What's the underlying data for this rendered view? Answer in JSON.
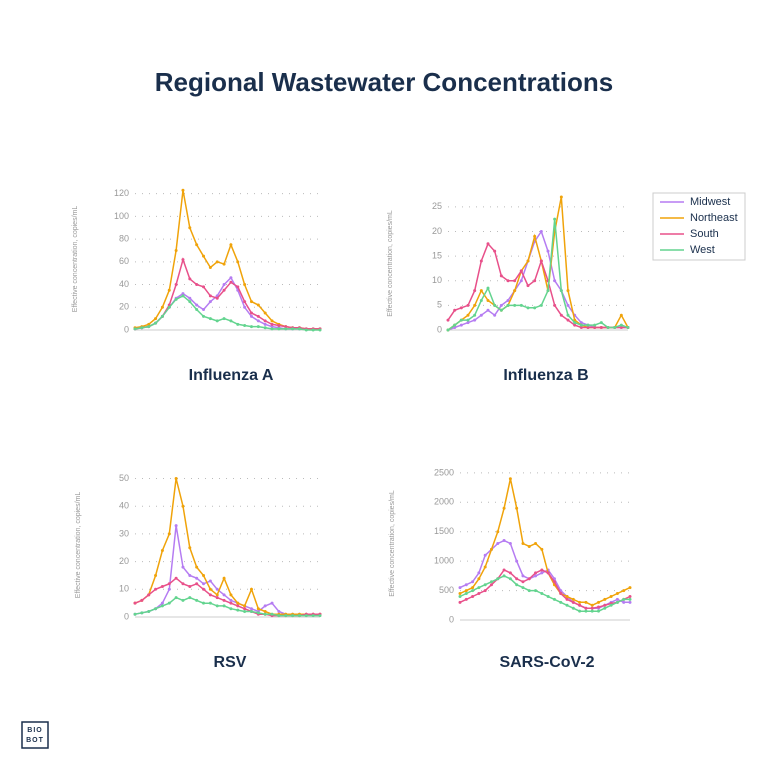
{
  "title": "Regional  Wastewater Concentrations",
  "logo": [
    "BIO",
    "BOT"
  ],
  "legend": [
    {
      "name": "Midwest",
      "color": "#b57cf2"
    },
    {
      "name": "Northeast",
      "color": "#f0a30a"
    },
    {
      "name": "South",
      "color": "#e8508a"
    },
    {
      "name": "West",
      "color": "#63d48f"
    }
  ],
  "chart_data": [
    {
      "type": "line",
      "title": "Influenza A",
      "y_label": "Effective concentration, copies/mL",
      "grid": true,
      "ylim": [
        0,
        125
      ],
      "yticks": [
        0,
        20,
        40,
        60,
        80,
        100,
        120
      ],
      "series": [
        {
          "values": [
            1,
            2,
            3,
            6,
            12,
            20,
            28,
            32,
            28,
            22,
            18,
            25,
            30,
            40,
            46,
            35,
            20,
            12,
            8,
            5,
            3,
            2,
            1,
            1,
            1,
            1,
            1,
            1
          ]
        },
        {
          "values": [
            2,
            3,
            5,
            10,
            20,
            35,
            70,
            123,
            90,
            75,
            65,
            55,
            60,
            58,
            75,
            60,
            40,
            25,
            22,
            15,
            8,
            5,
            3,
            2,
            2,
            1,
            1,
            1
          ]
        },
        {
          "values": [
            1,
            2,
            3,
            6,
            12,
            22,
            40,
            62,
            45,
            40,
            38,
            30,
            28,
            35,
            42,
            38,
            25,
            15,
            12,
            8,
            5,
            4,
            3,
            2,
            2,
            1,
            1,
            1
          ]
        },
        {
          "values": [
            1,
            2,
            3,
            6,
            12,
            20,
            27,
            30,
            25,
            18,
            12,
            10,
            8,
            10,
            8,
            5,
            4,
            3,
            3,
            2,
            1,
            1,
            1,
            1,
            1,
            0,
            0,
            0
          ]
        }
      ]
    },
    {
      "type": "line",
      "title": "Influenza B",
      "y_label": "Effective concentration, copies/mL",
      "grid": true,
      "ylim": [
        0,
        27
      ],
      "yticks": [
        0,
        5,
        10,
        15,
        20,
        25
      ],
      "series": [
        {
          "values": [
            0,
            0.5,
            1,
            1.5,
            2,
            3,
            4,
            3,
            5,
            6,
            8,
            10,
            14,
            18,
            20,
            16,
            10,
            8,
            5,
            3,
            1.5,
            1,
            0.5,
            0.5,
            0.5,
            0.5,
            0.5,
            0.5
          ]
        },
        {
          "values": [
            0,
            1,
            2,
            3,
            5,
            8,
            6,
            5,
            4,
            5,
            8,
            12,
            14,
            19,
            14,
            8,
            20,
            27,
            8,
            2,
            1,
            0.5,
            0.5,
            0.5,
            0.5,
            0.5,
            3,
            0.5
          ]
        },
        {
          "values": [
            2,
            4,
            4.5,
            5,
            8,
            14,
            17.5,
            16,
            11,
            10,
            10,
            12,
            9,
            10,
            14,
            10,
            5,
            3,
            2,
            1,
            0.5,
            0.5,
            0.5,
            0.5,
            0.5,
            0.5,
            0.5,
            0.5
          ]
        },
        {
          "values": [
            0,
            1,
            2,
            2,
            3,
            6,
            8.5,
            5,
            4,
            5,
            5,
            5,
            4.5,
            4.5,
            5,
            8,
            22.5,
            8,
            3,
            1.5,
            1,
            1,
            1,
            1.5,
            0.5,
            0.5,
            1,
            0.5
          ]
        }
      ]
    },
    {
      "type": "line",
      "title": "RSV",
      "y_label": "Effective concentration, copies/mL",
      "grid": true,
      "ylim": [
        0,
        52
      ],
      "yticks": [
        0,
        10,
        20,
        30,
        40,
        50
      ],
      "series": [
        {
          "values": [
            1,
            1.5,
            2,
            3,
            5,
            10,
            33,
            18,
            15,
            14,
            12,
            13,
            10,
            8,
            6,
            5,
            4,
            3,
            2,
            4,
            5,
            2,
            1,
            1,
            1,
            1,
            1,
            1
          ]
        },
        {
          "values": [
            5,
            6,
            8,
            15,
            24,
            30,
            50,
            40,
            25,
            18,
            15,
            10,
            8,
            14,
            8,
            5,
            4,
            10,
            3,
            2,
            1,
            1,
            1,
            1,
            1,
            1,
            1,
            1
          ]
        },
        {
          "values": [
            5,
            6,
            8,
            10,
            11,
            12,
            14,
            12,
            11,
            12,
            10,
            8,
            7,
            6,
            5,
            4,
            3,
            2,
            1,
            1,
            0.5,
            0.5,
            0.5,
            0.5,
            0.5,
            1,
            1,
            1
          ]
        },
        {
          "values": [
            1,
            1.5,
            2,
            3,
            4,
            5,
            7,
            6,
            7,
            6,
            5,
            5,
            4,
            4,
            3,
            2.5,
            2,
            2,
            1.5,
            1,
            1,
            0.5,
            0.5,
            0.5,
            0.5,
            0.5,
            0.5,
            0.5
          ]
        }
      ]
    },
    {
      "type": "line",
      "title": "SARS-CoV-2",
      "y_label": "Effective concentration, copies/mL",
      "grid": true,
      "ylim": [
        0,
        2600
      ],
      "yticks": [
        0,
        500,
        1000,
        1500,
        2000,
        2500
      ],
      "series": [
        {
          "values": [
            550,
            600,
            650,
            800,
            1100,
            1200,
            1300,
            1350,
            1300,
            1000,
            750,
            700,
            750,
            800,
            850,
            700,
            500,
            400,
            300,
            250,
            200,
            200,
            200,
            250,
            300,
            350,
            300,
            300
          ]
        },
        {
          "values": [
            450,
            500,
            550,
            700,
            900,
            1200,
            1500,
            1900,
            2400,
            1900,
            1300,
            1250,
            1300,
            1200,
            800,
            600,
            450,
            400,
            350,
            300,
            300,
            250,
            300,
            350,
            400,
            450,
            500,
            550
          ]
        },
        {
          "values": [
            300,
            350,
            400,
            450,
            500,
            600,
            700,
            850,
            800,
            700,
            650,
            700,
            800,
            850,
            800,
            650,
            450,
            350,
            300,
            250,
            200,
            200,
            220,
            250,
            280,
            300,
            350,
            400
          ]
        },
        {
          "values": [
            400,
            450,
            500,
            550,
            600,
            650,
            700,
            750,
            700,
            600,
            550,
            500,
            500,
            450,
            400,
            350,
            300,
            250,
            200,
            150,
            150,
            150,
            150,
            200,
            250,
            300,
            350,
            350
          ]
        }
      ]
    }
  ]
}
